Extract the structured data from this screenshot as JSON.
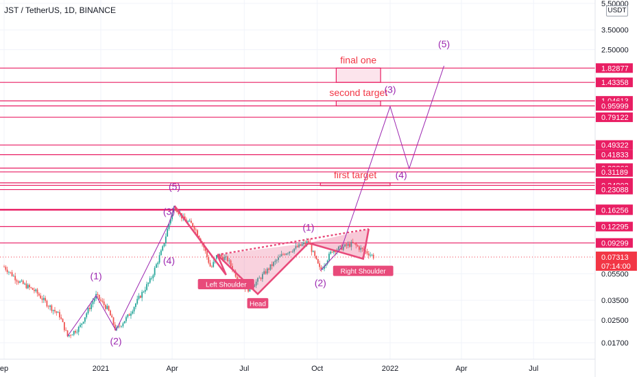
{
  "header": {
    "pair_title": "JST / TetherUS, 1D, BINANCE",
    "currency": "USDT"
  },
  "colors": {
    "level_line": "#e91e63",
    "wave": "#9c27b0",
    "target_text": "#f23645",
    "pattern": "#e84a7a",
    "price_tag": "#f23645",
    "candle_up": "#26a69a",
    "candle_down": "#ef5350",
    "grid": "#f0f3fa"
  },
  "chart_data": {
    "type": "candlestick",
    "y_scale": "log",
    "ylim": [
      0.0145,
      5.5
    ],
    "xlim": [
      "2020-09-01",
      "2022-10-01"
    ],
    "grid": true,
    "x_ticks": [
      {
        "label": "ep",
        "date": "2020-09-01"
      },
      {
        "label": "2021",
        "date": "2021-01-01"
      },
      {
        "label": "Apr",
        "date": "2021-04-01"
      },
      {
        "label": "Jul",
        "date": "2021-07-01"
      },
      {
        "label": "Oct",
        "date": "2021-10-01"
      },
      {
        "label": "2022",
        "date": "2022-01-01"
      },
      {
        "label": "Apr",
        "date": "2022-04-01"
      },
      {
        "label": "Jul",
        "date": "2022-07-01"
      }
    ],
    "y_ticks": [
      5.5,
      3.5,
      2.5,
      0.055,
      0.035,
      0.025,
      0.017
    ],
    "y_tick_labels": [
      "5.50000",
      "3.50000",
      "2.50000",
      "0.05500",
      "0.03500",
      "0.02500",
      "0.01700"
    ],
    "level_labels": [
      "1.82877",
      "1.43358",
      "1.04613",
      "0.95999",
      "0.79122",
      "0.49322",
      "0.41833",
      "0.33266",
      "0.31189",
      "0.25891",
      "0.24802",
      "0.23088",
      "0.16490",
      "0.16256",
      "0.12295",
      "0.09299"
    ],
    "current_price": {
      "price": "0.07313",
      "value": 0.07313,
      "countdown": "07:14:00"
    },
    "price_path": [
      [
        "2020-09-01",
        0.062
      ],
      [
        "2020-09-20",
        0.048
      ],
      [
        "2020-10-10",
        0.041
      ],
      [
        "2020-10-25",
        0.033
      ],
      [
        "2020-11-10",
        0.027
      ],
      [
        "2020-11-20",
        0.019
      ],
      [
        "2020-12-05",
        0.022
      ],
      [
        "2020-12-15",
        0.029
      ],
      [
        "2020-12-26",
        0.038
      ],
      [
        "2021-01-10",
        0.03
      ],
      [
        "2021-01-20",
        0.021
      ],
      [
        "2021-02-05",
        0.027
      ],
      [
        "2021-02-20",
        0.038
      ],
      [
        "2021-03-05",
        0.05
      ],
      [
        "2021-03-20",
        0.085
      ],
      [
        "2021-03-28",
        0.13
      ],
      [
        "2021-04-04",
        0.175
      ],
      [
        "2021-04-15",
        0.14
      ],
      [
        "2021-04-28",
        0.125
      ],
      [
        "2021-05-10",
        0.09
      ],
      [
        "2021-05-20",
        0.06
      ],
      [
        "2021-05-28",
        0.076
      ],
      [
        "2021-06-10",
        0.07
      ],
      [
        "2021-06-25",
        0.048
      ],
      [
        "2021-07-05",
        0.042
      ],
      [
        "2021-07-18",
        0.049
      ],
      [
        "2021-08-05",
        0.064
      ],
      [
        "2021-08-20",
        0.078
      ],
      [
        "2021-09-05",
        0.086
      ],
      [
        "2021-09-20",
        0.095
      ],
      [
        "2021-09-25",
        0.08
      ],
      [
        "2021-10-05",
        0.058
      ],
      [
        "2021-10-20",
        0.082
      ],
      [
        "2021-11-01",
        0.086
      ],
      [
        "2021-11-15",
        0.092
      ],
      [
        "2021-11-25",
        0.084
      ],
      [
        "2021-12-05",
        0.078
      ],
      [
        "2021-12-12",
        0.07313
      ]
    ],
    "targets": [
      {
        "label": "final one",
        "date_from": "2021-10-25",
        "date_to": "2021-12-20",
        "low": 1.43358,
        "high": 1.82877
      },
      {
        "label": "second target",
        "date_from": "2021-10-25",
        "date_to": "2021-12-20",
        "low": 0.95999,
        "high": 1.04613
      },
      {
        "label": "first target",
        "date_from": "2021-10-05",
        "date_to": "2022-01-01",
        "low": 0.24802,
        "high": 0.25891
      }
    ],
    "wave_labels": [
      {
        "label": "(1)",
        "date": "2020-12-26",
        "value": 0.05
      },
      {
        "label": "(2)",
        "date": "2021-01-20",
        "value": 0.0165
      },
      {
        "label": "(3)",
        "date": "2021-03-28",
        "value": 0.15
      },
      {
        "label": "(4)",
        "date": "2021-03-28",
        "value": 0.065
      },
      {
        "label": "(5)",
        "date": "2021-04-04",
        "value": 0.23
      },
      {
        "label": "(1)",
        "date": "2021-09-20",
        "value": 0.115
      },
      {
        "label": "(2)",
        "date": "2021-10-05",
        "value": 0.0445
      },
      {
        "label": "(3)",
        "date": "2022-01-01",
        "value": 1.2
      },
      {
        "label": "(4)",
        "date": "2022-01-15",
        "value": 0.28
      },
      {
        "label": "(5)",
        "date": "2022-03-10",
        "value": 2.6
      }
    ],
    "wave_path_1": [
      [
        "2020-11-20",
        0.019
      ],
      [
        "2020-12-26",
        0.038
      ],
      [
        "2021-01-20",
        0.021
      ],
      [
        "2021-03-28",
        0.13
      ],
      [
        "2021-04-04",
        0.175
      ]
    ],
    "wave_path_2": [
      [
        "2021-10-05",
        0.058
      ],
      [
        "2021-11-01",
        0.086
      ],
      [
        "2022-01-01",
        0.95
      ],
      [
        "2022-01-25",
        0.33
      ],
      [
        "2022-03-10",
        1.9
      ]
    ],
    "pattern_labels": [
      "Left Shoulder",
      "Head",
      "Right Shoulder"
    ],
    "pattern_points": {
      "neck_left": [
        "2021-05-28",
        0.076
      ],
      "left_shoulder": [
        "2021-06-08",
        0.054
      ],
      "head": [
        "2021-07-18",
        0.039
      ],
      "neck_mid": [
        "2021-09-20",
        0.093
      ],
      "right_shoulder": [
        "2021-11-28",
        0.071
      ],
      "neck_right": [
        "2021-12-05",
        0.118
      ]
    }
  }
}
